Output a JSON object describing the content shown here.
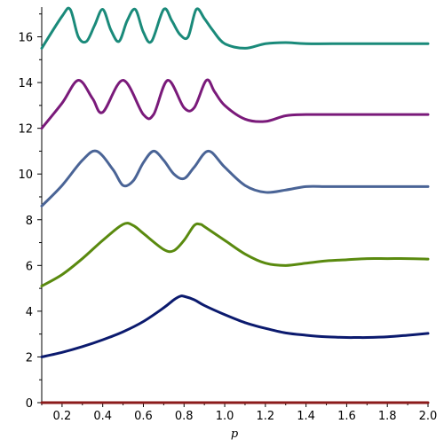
{
  "chart_data": {
    "type": "line",
    "title": "",
    "xlabel": "p",
    "ylabel": "",
    "xlim": [
      0.1,
      2.0
    ],
    "ylim": [
      0,
      17.3
    ],
    "grid": false,
    "legend": "none",
    "x_ticks": [
      "0.2",
      "0.4",
      "0.6",
      "0.8",
      "1.0",
      "1.2",
      "1.4",
      "1.6",
      "1.8",
      "2.0"
    ],
    "x_tick_values": [
      0.2,
      0.4,
      0.6,
      0.8,
      1.0,
      1.2,
      1.4,
      1.6,
      1.8,
      2.0
    ],
    "y_ticks": [
      "0",
      "2",
      "4",
      "6",
      "8",
      "10",
      "12",
      "14",
      "16"
    ],
    "y_tick_values": [
      0,
      2,
      4,
      6,
      8,
      10,
      12,
      14,
      16
    ],
    "series": [
      {
        "color": "#8b1a1a",
        "x": [
          0.1,
          2.0
        ],
        "y": [
          0.0,
          0.0
        ]
      },
      {
        "color": "#0b1a6e",
        "x": [
          0.1,
          0.2,
          0.3,
          0.4,
          0.5,
          0.6,
          0.7,
          0.75,
          0.78,
          0.8,
          0.85,
          0.9,
          1.0,
          1.1,
          1.2,
          1.3,
          1.4,
          1.5,
          1.6,
          1.65,
          1.7,
          1.8,
          1.9,
          2.0
        ],
        "y": [
          2.0,
          2.2,
          2.45,
          2.75,
          3.1,
          3.55,
          4.15,
          4.5,
          4.65,
          4.65,
          4.5,
          4.25,
          3.85,
          3.5,
          3.25,
          3.05,
          2.95,
          2.88,
          2.85,
          2.85,
          2.85,
          2.88,
          2.95,
          3.03
        ]
      },
      {
        "color": "#5a8a0f",
        "x": [
          0.1,
          0.2,
          0.3,
          0.4,
          0.5,
          0.55,
          0.6,
          0.7,
          0.75,
          0.8,
          0.85,
          0.88,
          0.9,
          1.0,
          1.1,
          1.2,
          1.3,
          1.4,
          1.5,
          1.6,
          1.7,
          1.8,
          1.9,
          2.0
        ],
        "y": [
          5.1,
          5.6,
          6.3,
          7.1,
          7.8,
          7.75,
          7.4,
          6.7,
          6.65,
          7.1,
          7.75,
          7.8,
          7.7,
          7.1,
          6.5,
          6.1,
          6.0,
          6.1,
          6.2,
          6.25,
          6.3,
          6.3,
          6.3,
          6.28
        ]
      },
      {
        "color": "#4a6496",
        "x": [
          0.1,
          0.2,
          0.3,
          0.37,
          0.45,
          0.5,
          0.55,
          0.6,
          0.65,
          0.7,
          0.75,
          0.8,
          0.85,
          0.92,
          1.0,
          1.1,
          1.2,
          1.3,
          1.4,
          1.5,
          1.6,
          1.8,
          2.0
        ],
        "y": [
          8.6,
          9.5,
          10.6,
          11.0,
          10.2,
          9.5,
          9.7,
          10.5,
          11.0,
          10.6,
          10.0,
          9.8,
          10.3,
          11.0,
          10.3,
          9.5,
          9.2,
          9.3,
          9.45,
          9.45,
          9.45,
          9.45,
          9.45
        ]
      },
      {
        "color": "#7a1a7a",
        "x": [
          0.1,
          0.2,
          0.28,
          0.35,
          0.4,
          0.5,
          0.6,
          0.65,
          0.72,
          0.8,
          0.85,
          0.91,
          0.95,
          1.0,
          1.1,
          1.2,
          1.3,
          1.4,
          1.5,
          1.6,
          1.8,
          2.0
        ],
        "y": [
          12.0,
          13.1,
          14.1,
          13.3,
          12.7,
          14.1,
          12.6,
          12.6,
          14.1,
          12.9,
          12.9,
          14.1,
          13.6,
          13.0,
          12.4,
          12.3,
          12.55,
          12.6,
          12.6,
          12.6,
          12.6,
          12.6
        ]
      },
      {
        "color": "#1a8a7a",
        "x": [
          0.1,
          0.2,
          0.24,
          0.28,
          0.32,
          0.36,
          0.4,
          0.44,
          0.48,
          0.52,
          0.56,
          0.6,
          0.64,
          0.7,
          0.74,
          0.78,
          0.82,
          0.86,
          0.9,
          0.94,
          1.0,
          1.1,
          1.2,
          1.3,
          1.4,
          1.6,
          1.8,
          2.0
        ],
        "y": [
          15.5,
          16.9,
          17.2,
          16.0,
          15.8,
          16.5,
          17.2,
          16.3,
          15.8,
          16.7,
          17.2,
          16.2,
          15.8,
          17.2,
          16.7,
          16.1,
          16.0,
          17.2,
          16.8,
          16.3,
          15.7,
          15.5,
          15.7,
          15.75,
          15.7,
          15.7,
          15.7,
          15.7
        ]
      }
    ]
  }
}
